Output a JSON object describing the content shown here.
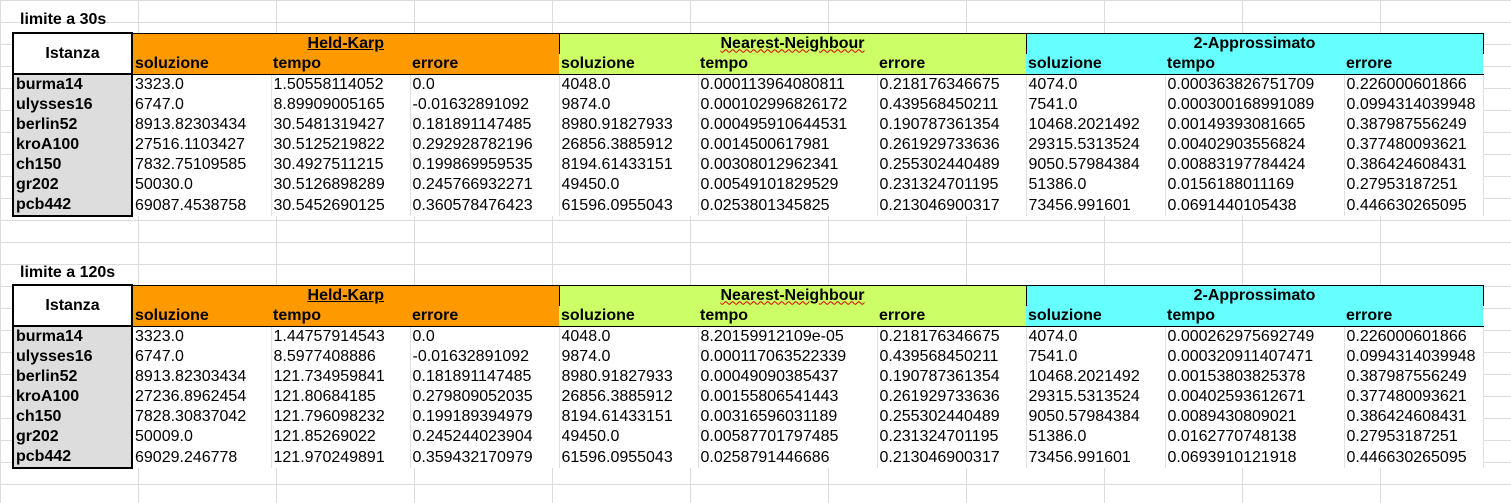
{
  "headers": {
    "istanza": "Istanza",
    "groups": [
      "Held-Karp",
      "Nearest-Neighbour",
      "2-Approssimato"
    ],
    "subs": [
      "soluzione",
      "tempo",
      "errore"
    ]
  },
  "colors": {
    "held_karp": "#ff9900",
    "nearest_neighbour": "#ccff66",
    "two_approx": "#66ffff",
    "row_label": "#dddddd"
  },
  "tables": [
    {
      "title": "limite a 30s",
      "rows": [
        {
          "name": "burma14",
          "values": [
            "3323.0",
            "1.50558114052",
            "0.0",
            "4048.0",
            "0.000113964080811",
            "0.218176346675",
            "4074.0",
            "0.000363826751709",
            "0.226000601866"
          ]
        },
        {
          "name": "ulysses16",
          "values": [
            "6747.0",
            "8.89909005165",
            "-0.01632891092",
            "9874.0",
            "0.000102996826172",
            "0.439568450211",
            "7541.0",
            "0.000300168991089",
            "0.0994314039948"
          ]
        },
        {
          "name": "berlin52",
          "values": [
            "8913.82303434",
            "30.5481319427",
            "0.181891147485",
            "8980.91827933",
            "0.000495910644531",
            "0.190787361354",
            "10468.2021492",
            "0.00149393081665",
            "0.387987556249"
          ]
        },
        {
          "name": "kroA100",
          "values": [
            "27516.1103427",
            "30.5125219822",
            "0.292928782196",
            "26856.3885912",
            "0.0014500617981",
            "0.261929733636",
            "29315.5313524",
            "0.00402903556824",
            "0.377480093621"
          ]
        },
        {
          "name": "ch150",
          "values": [
            "7832.75109585",
            "30.4927511215",
            "0.199869959535",
            "8194.61433151",
            "0.00308012962341",
            "0.255302440489",
            "9050.57984384",
            "0.00883197784424",
            "0.386424608431"
          ]
        },
        {
          "name": "gr202",
          "values": [
            "50030.0",
            "30.5126898289",
            "0.245766932271",
            "49450.0",
            "0.00549101829529",
            "0.231324701195",
            "51386.0",
            "0.0156188011169",
            "0.27953187251"
          ]
        },
        {
          "name": "pcb442",
          "values": [
            "69087.4538758",
            "30.5452690125",
            "0.360578476423",
            "61596.0955043",
            "0.0253801345825",
            "0.213046900317",
            "73456.991601",
            "0.0691440105438",
            "0.446630265095"
          ]
        }
      ]
    },
    {
      "title": "limite a 120s",
      "rows": [
        {
          "name": "burma14",
          "values": [
            "3323.0",
            "1.44757914543",
            "0.0",
            "4048.0",
            "8.20159912109e-05",
            "0.218176346675",
            "4074.0",
            "0.000262975692749",
            "0.226000601866"
          ]
        },
        {
          "name": "ulysses16",
          "values": [
            "6747.0",
            "8.5977408886",
            "-0.01632891092",
            "9874.0",
            "0.000117063522339",
            "0.439568450211",
            "7541.0",
            "0.000320911407471",
            "0.0994314039948"
          ]
        },
        {
          "name": "berlin52",
          "values": [
            "8913.82303434",
            "121.734959841",
            "0.181891147485",
            "8980.91827933",
            "0.00049090385437",
            "0.190787361354",
            "10468.2021492",
            "0.00153803825378",
            "0.387987556249"
          ]
        },
        {
          "name": "kroA100",
          "values": [
            "27236.8962454",
            "121.80684185",
            "0.279809052035",
            "26856.3885912",
            "0.00155806541443",
            "0.261929733636",
            "29315.5313524",
            "0.00402593612671",
            "0.377480093621"
          ]
        },
        {
          "name": "ch150",
          "values": [
            "7828.30837042",
            "121.796098232",
            "0.199189394979",
            "8194.61433151",
            "0.00316596031189",
            "0.255302440489",
            "9050.57984384",
            "0.0089430809021",
            "0.386424608431"
          ]
        },
        {
          "name": "gr202",
          "values": [
            "50009.0",
            "121.85269022",
            "0.245244023904",
            "49450.0",
            "0.00587701797485",
            "0.231324701195",
            "51386.0",
            "0.0162770748138",
            "0.27953187251"
          ]
        },
        {
          "name": "pcb442",
          "values": [
            "69029.246778",
            "121.970249891",
            "0.359432170979",
            "61596.0955043",
            "0.0258791446686",
            "0.213046900317",
            "73456.991601",
            "0.0693910121918",
            "0.446630265095"
          ]
        }
      ]
    }
  ]
}
